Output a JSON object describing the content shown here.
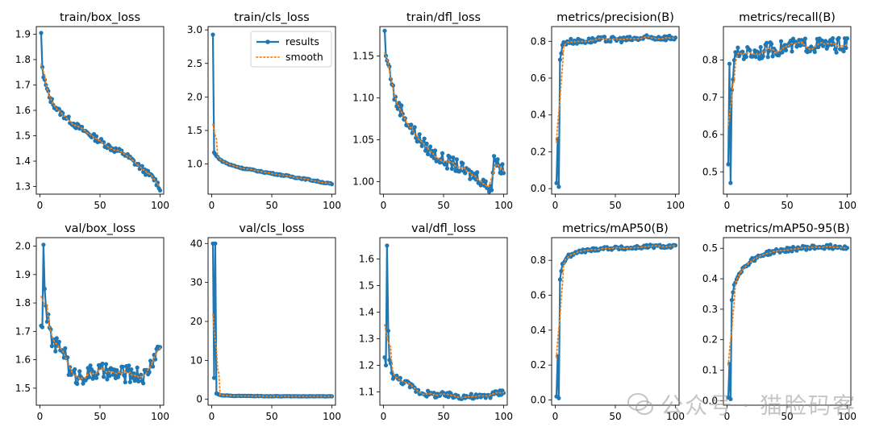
{
  "watermark": {
    "text": "公众号 · 猫脸码客"
  },
  "legend": {
    "results": "results",
    "smooth": "smooth"
  },
  "chart_data": [
    {
      "type": "line",
      "title": "train/box_loss",
      "xlim": [
        -3,
        103
      ],
      "ylim": [
        1.27,
        1.93
      ],
      "xticks": [
        0,
        50,
        100
      ],
      "yticks": [
        1.3,
        1.4,
        1.5,
        1.6,
        1.7,
        1.8,
        1.9
      ],
      "series": [
        {
          "name": "results",
          "anchors": [
            [
              1,
              1.905
            ],
            [
              2,
              1.77
            ],
            [
              3,
              1.73
            ],
            [
              5,
              1.7
            ],
            [
              8,
              1.65
            ],
            [
              12,
              1.62
            ],
            [
              15,
              1.6
            ],
            [
              20,
              1.58
            ],
            [
              25,
              1.56
            ],
            [
              30,
              1.54
            ],
            [
              40,
              1.51
            ],
            [
              50,
              1.48
            ],
            [
              60,
              1.45
            ],
            [
              70,
              1.43
            ],
            [
              80,
              1.39
            ],
            [
              90,
              1.35
            ],
            [
              95,
              1.33
            ],
            [
              100,
              1.295
            ]
          ],
          "noise": 0.012
        }
      ]
    },
    {
      "type": "line",
      "title": "train/cls_loss",
      "xlim": [
        -3,
        103
      ],
      "ylim": [
        0.55,
        3.05
      ],
      "xticks": [
        0,
        50,
        100
      ],
      "yticks": [
        1.0,
        1.5,
        2.0,
        2.5,
        3.0
      ],
      "legend": "top-right",
      "series": [
        {
          "name": "results",
          "anchors": [
            [
              1,
              2.93
            ],
            [
              2,
              1.17
            ],
            [
              4,
              1.12
            ],
            [
              8,
              1.05
            ],
            [
              15,
              0.99
            ],
            [
              25,
              0.94
            ],
            [
              40,
              0.89
            ],
            [
              60,
              0.83
            ],
            [
              80,
              0.77
            ],
            [
              100,
              0.7
            ]
          ],
          "noise": 0.01
        }
      ]
    },
    {
      "type": "line",
      "title": "train/dfl_loss",
      "xlim": [
        -3,
        103
      ],
      "ylim": [
        0.985,
        1.185
      ],
      "xticks": [
        0,
        50,
        100
      ],
      "yticks": [
        1.0,
        1.05,
        1.1,
        1.15
      ],
      "series": [
        {
          "name": "results",
          "anchors": [
            [
              1,
              1.18
            ],
            [
              2,
              1.15
            ],
            [
              4,
              1.14
            ],
            [
              7,
              1.12
            ],
            [
              10,
              1.095
            ],
            [
              15,
              1.085
            ],
            [
              20,
              1.07
            ],
            [
              30,
              1.05
            ],
            [
              40,
              1.035
            ],
            [
              50,
              1.025
            ],
            [
              60,
              1.02
            ],
            [
              70,
              1.01
            ],
            [
              80,
              1.005
            ],
            [
              85,
              0.995
            ],
            [
              90,
              0.995
            ],
            [
              92,
              1.03
            ],
            [
              95,
              1.02
            ],
            [
              100,
              1.015
            ]
          ],
          "noise": 0.008
        }
      ]
    },
    {
      "type": "line",
      "title": "metrics/precision(B)",
      "xlim": [
        -3,
        103
      ],
      "ylim": [
        -0.03,
        0.88
      ],
      "xticks": [
        0,
        50,
        100
      ],
      "yticks": [
        0.0,
        0.2,
        0.4,
        0.6,
        0.8
      ],
      "series": [
        {
          "name": "results",
          "anchors": [
            [
              1,
              0.03
            ],
            [
              2,
              0.27
            ],
            [
              3,
              0.01
            ],
            [
              4,
              0.7
            ],
            [
              6,
              0.78
            ],
            [
              10,
              0.8
            ],
            [
              20,
              0.8
            ],
            [
              40,
              0.81
            ],
            [
              60,
              0.81
            ],
            [
              80,
              0.82
            ],
            [
              100,
              0.82
            ]
          ],
          "noise": 0.015
        }
      ]
    },
    {
      "type": "line",
      "title": "metrics/recall(B)",
      "xlim": [
        -3,
        103
      ],
      "ylim": [
        0.44,
        0.89
      ],
      "xticks": [
        0,
        50,
        100
      ],
      "yticks": [
        0.5,
        0.6,
        0.7,
        0.8
      ],
      "series": [
        {
          "name": "results",
          "anchors": [
            [
              1,
              0.52
            ],
            [
              2,
              0.79
            ],
            [
              3,
              0.47
            ],
            [
              4,
              0.72
            ],
            [
              6,
              0.8
            ],
            [
              10,
              0.82
            ],
            [
              20,
              0.82
            ],
            [
              40,
              0.83
            ],
            [
              60,
              0.84
            ],
            [
              80,
              0.84
            ],
            [
              100,
              0.84
            ]
          ],
          "noise": 0.02
        }
      ]
    },
    {
      "type": "line",
      "title": "val/box_loss",
      "xlim": [
        -3,
        103
      ],
      "ylim": [
        1.44,
        2.03
      ],
      "xticks": [
        0,
        50,
        100
      ],
      "yticks": [
        1.5,
        1.6,
        1.7,
        1.8,
        1.9,
        2.0
      ],
      "series": [
        {
          "name": "results",
          "anchors": [
            [
              1,
              1.72
            ],
            [
              2,
              1.715
            ],
            [
              3,
              2.005
            ],
            [
              4,
              1.85
            ],
            [
              5,
              1.79
            ],
            [
              8,
              1.7
            ],
            [
              12,
              1.65
            ],
            [
              18,
              1.64
            ],
            [
              22,
              1.62
            ],
            [
              25,
              1.55
            ],
            [
              30,
              1.54
            ],
            [
              40,
              1.55
            ],
            [
              50,
              1.56
            ],
            [
              60,
              1.55
            ],
            [
              70,
              1.55
            ],
            [
              80,
              1.55
            ],
            [
              88,
              1.54
            ],
            [
              92,
              1.58
            ],
            [
              96,
              1.62
            ],
            [
              100,
              1.65
            ]
          ],
          "noise": 0.03
        }
      ]
    },
    {
      "type": "line",
      "title": "val/cls_loss",
      "xlim": [
        -3,
        103
      ],
      "ylim": [
        -1.5,
        41.5
      ],
      "xticks": [
        0,
        50,
        100
      ],
      "yticks": [
        0,
        10,
        20,
        30,
        40
      ],
      "series": [
        {
          "name": "results",
          "anchors": [
            [
              1,
              40.0
            ],
            [
              2,
              5.5
            ],
            [
              3,
              40.0
            ],
            [
              4,
              1.5
            ],
            [
              8,
              1.0
            ],
            [
              20,
              0.9
            ],
            [
              50,
              0.8
            ],
            [
              100,
              0.8
            ]
          ],
          "noise": 0.05
        }
      ]
    },
    {
      "type": "line",
      "title": "val/dfl_loss",
      "xlim": [
        -3,
        103
      ],
      "ylim": [
        1.05,
        1.68
      ],
      "xticks": [
        0,
        50,
        100
      ],
      "yticks": [
        1.1,
        1.2,
        1.3,
        1.4,
        1.5,
        1.6
      ],
      "series": [
        {
          "name": "results",
          "anchors": [
            [
              1,
              1.23
            ],
            [
              2,
              1.2
            ],
            [
              3,
              1.65
            ],
            [
              4,
              1.33
            ],
            [
              5,
              1.22
            ],
            [
              8,
              1.16
            ],
            [
              12,
              1.15
            ],
            [
              20,
              1.13
            ],
            [
              30,
              1.1
            ],
            [
              40,
              1.09
            ],
            [
              60,
              1.085
            ],
            [
              80,
              1.08
            ],
            [
              100,
              1.1
            ]
          ],
          "noise": 0.012
        }
      ]
    },
    {
      "type": "line",
      "title": "metrics/mAP50(B)",
      "xlim": [
        -3,
        103
      ],
      "ylim": [
        -0.03,
        0.93
      ],
      "xticks": [
        0,
        50,
        100
      ],
      "yticks": [
        0.0,
        0.2,
        0.4,
        0.6,
        0.8
      ],
      "series": [
        {
          "name": "results",
          "anchors": [
            [
              1,
              0.02
            ],
            [
              2,
              0.25
            ],
            [
              3,
              0.01
            ],
            [
              4,
              0.69
            ],
            [
              6,
              0.78
            ],
            [
              10,
              0.82
            ],
            [
              20,
              0.85
            ],
            [
              40,
              0.87
            ],
            [
              60,
              0.87
            ],
            [
              80,
              0.88
            ],
            [
              100,
              0.88
            ]
          ],
          "noise": 0.01
        }
      ]
    },
    {
      "type": "line",
      "title": "metrics/mAP50-95(B)",
      "xlim": [
        -3,
        103
      ],
      "ylim": [
        -0.015,
        0.535
      ],
      "xticks": [
        0,
        50,
        100
      ],
      "yticks": [
        0.0,
        0.1,
        0.2,
        0.3,
        0.4,
        0.5
      ],
      "series": [
        {
          "name": "results",
          "anchors": [
            [
              1,
              0.01
            ],
            [
              2,
              0.12
            ],
            [
              3,
              0.005
            ],
            [
              4,
              0.33
            ],
            [
              6,
              0.38
            ],
            [
              10,
              0.42
            ],
            [
              20,
              0.46
            ],
            [
              30,
              0.48
            ],
            [
              40,
              0.49
            ],
            [
              60,
              0.5
            ],
            [
              80,
              0.505
            ],
            [
              100,
              0.505
            ]
          ],
          "noise": 0.007
        }
      ]
    }
  ]
}
